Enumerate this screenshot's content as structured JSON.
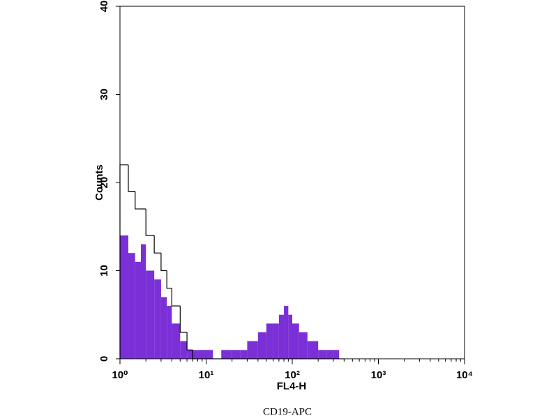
{
  "chart_data": {
    "type": "histogram",
    "x_label": "FL4-H",
    "y_label": "Counts",
    "caption": "CD19-APC",
    "xscale": "log",
    "xlim": [
      1,
      10000
    ],
    "ylim": [
      0,
      40
    ],
    "xticks": [
      {
        "value": 1,
        "label": "10⁰"
      },
      {
        "value": 10,
        "label": "10¹"
      },
      {
        "value": 100,
        "label": "10²"
      },
      {
        "value": 1000,
        "label": "10³"
      },
      {
        "value": 10000,
        "label": "10⁴"
      }
    ],
    "yticks": [
      0,
      10,
      20,
      30,
      40
    ],
    "bins": [
      1,
      1.25,
      1.5,
      1.75,
      2,
      2.5,
      3,
      3.5,
      4,
      5,
      6,
      7,
      8,
      10,
      12,
      15,
      20,
      25,
      30,
      40,
      50,
      60,
      70,
      80,
      90,
      100,
      120,
      150,
      200,
      250,
      300,
      350,
      400
    ],
    "series": [
      {
        "color": "#7b2fd6",
        "style": "filled",
        "values": [
          14,
          12,
          11,
          13,
          10,
          9,
          7,
          6,
          4,
          2,
          1,
          1,
          1,
          1,
          0,
          1,
          1,
          1,
          2,
          3,
          4,
          4,
          5,
          6,
          5,
          4,
          3,
          2,
          1,
          1,
          1,
          0
        ]
      },
      {
        "color": "#000000",
        "style": "outline",
        "values": [
          22,
          19,
          17,
          17,
          14,
          12,
          10,
          8,
          6,
          3,
          1,
          0,
          0,
          0,
          0,
          0,
          0,
          0,
          0,
          0,
          0,
          0,
          0,
          0,
          0,
          0,
          0,
          0,
          0,
          0,
          0,
          0
        ]
      }
    ]
  }
}
